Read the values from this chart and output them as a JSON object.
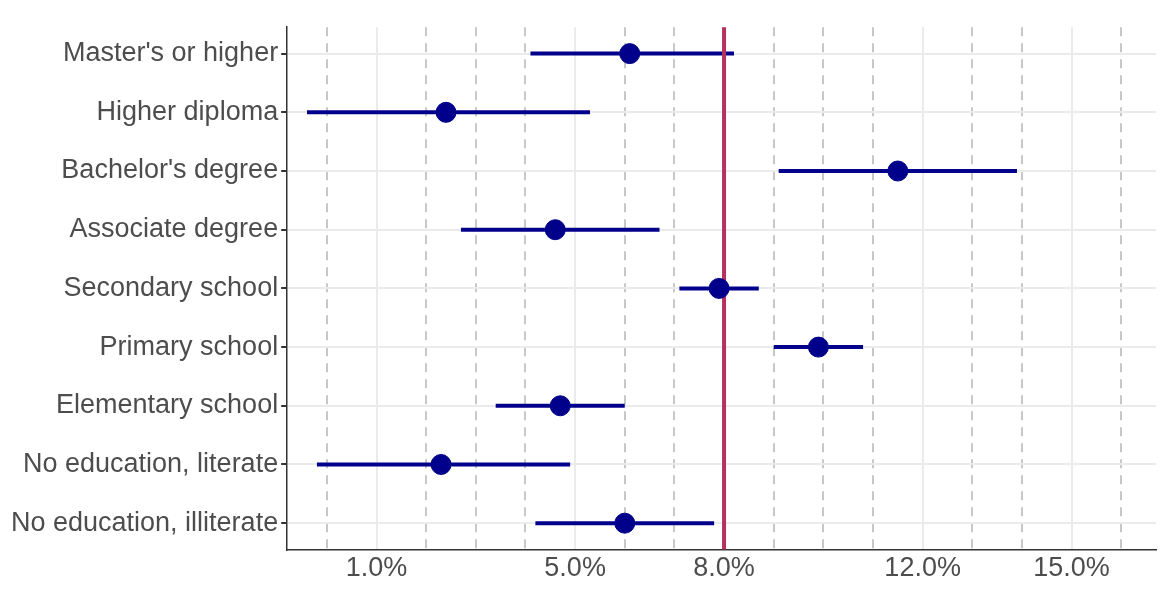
{
  "chart_data": {
    "type": "scatter",
    "orientation": "horizontal",
    "categories": [
      "Master's or higher",
      "Higher diploma",
      "Bachelor's degree",
      "Associate degree",
      "Secondary school",
      "Primary school",
      "Elementary school",
      "No education, literate",
      "No education, illiterate"
    ],
    "values": [
      6.1,
      2.4,
      11.5,
      4.6,
      7.9,
      9.9,
      4.7,
      2.3,
      6.0
    ],
    "errors": [
      [
        4.1,
        8.2
      ],
      [
        -0.4,
        5.3
      ],
      [
        9.1,
        13.9
      ],
      [
        2.7,
        6.7
      ],
      [
        7.1,
        8.7
      ],
      [
        9.0,
        10.8
      ],
      [
        3.4,
        6.0
      ],
      [
        -0.2,
        4.9
      ],
      [
        4.2,
        7.8
      ]
    ],
    "color": "#00008b",
    "marker": "circle",
    "grid": true,
    "xlim": [
      -0.8,
      16.7
    ],
    "xticks": [
      {
        "value": 0,
        "label": null
      },
      {
        "value": 1,
        "label": "1.0%"
      },
      {
        "value": 2,
        "label": null
      },
      {
        "value": 3,
        "label": null
      },
      {
        "value": 4,
        "label": null
      },
      {
        "value": 5,
        "label": "5.0%"
      },
      {
        "value": 6,
        "label": null
      },
      {
        "value": 7,
        "label": null
      },
      {
        "value": 8,
        "label": "8.0%"
      },
      {
        "value": 9,
        "label": null
      },
      {
        "value": 10,
        "label": null
      },
      {
        "value": 11,
        "label": null
      },
      {
        "value": 12,
        "label": "12.0%"
      },
      {
        "value": 13,
        "label": null
      },
      {
        "value": 14,
        "label": null
      },
      {
        "value": 15,
        "label": "15.0%"
      },
      {
        "value": 16,
        "label": null
      }
    ],
    "ref_lines": [
      {
        "axis": "x",
        "value": 8,
        "label": null,
        "color": "#b5305f"
      }
    ]
  }
}
